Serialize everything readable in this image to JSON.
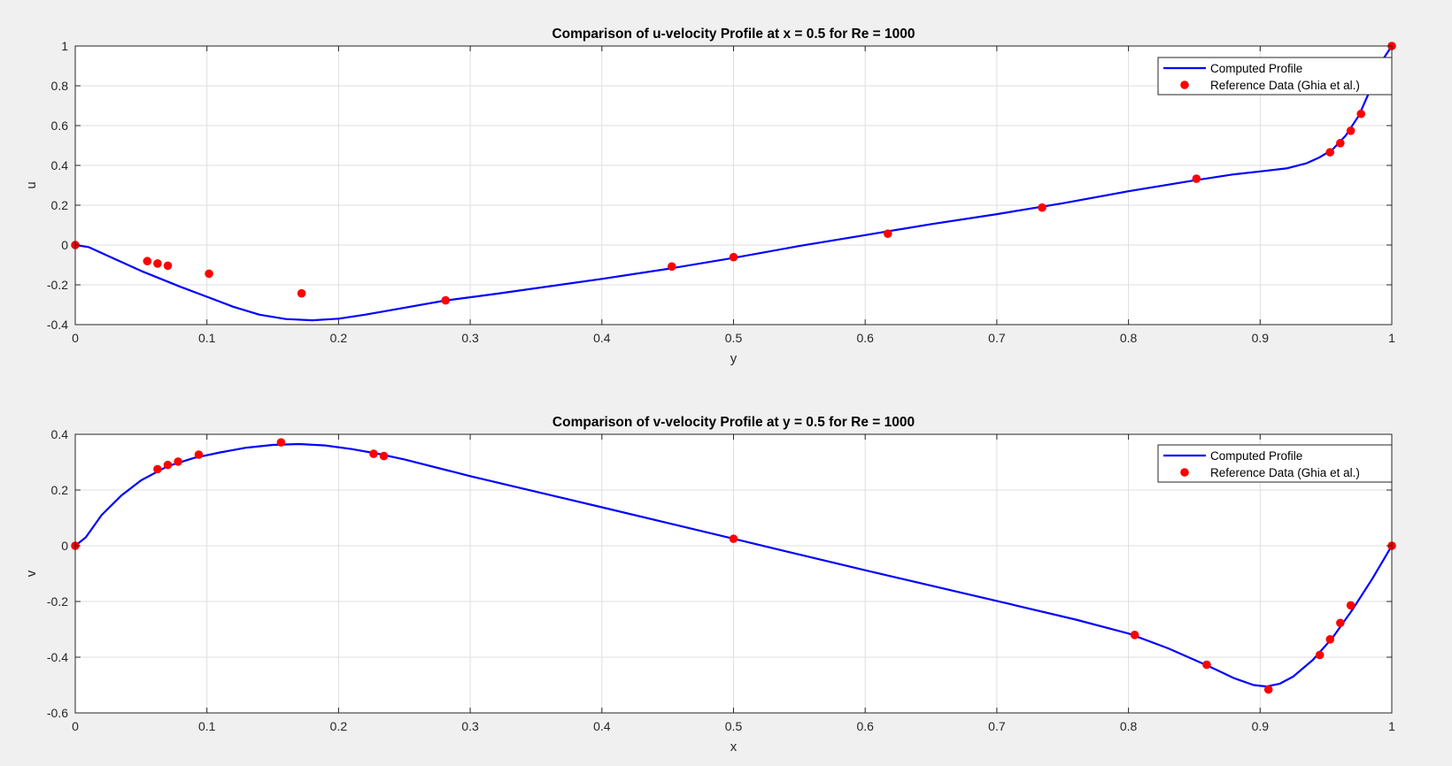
{
  "figure": {
    "background": "#f0f0f0",
    "toolbar": [
      {
        "name": "brush-icon",
        "title": "Brush"
      },
      {
        "name": "data-tips-icon",
        "title": "Data Tips"
      },
      {
        "name": "export-icon",
        "title": "Export"
      },
      {
        "name": "pan-icon",
        "title": "Pan"
      },
      {
        "name": "zoom-in-icon",
        "title": "Zoom In"
      },
      {
        "name": "zoom-out-icon",
        "title": "Zoom Out"
      },
      {
        "name": "home-icon",
        "title": "Restore View"
      }
    ]
  },
  "colors": {
    "line": "#0000ff",
    "marker": "#ff0000",
    "grid": "#dfdfdf",
    "axis": "#262626"
  },
  "chart_data": [
    {
      "type": "line",
      "title": "Comparison of u-velocity Profile at x = 0.5 for Re = 1000",
      "xlabel": "y",
      "ylabel": "u",
      "xlim": [
        0,
        1
      ],
      "ylim": [
        -0.4,
        1
      ],
      "xticks": [
        0,
        0.1,
        0.2,
        0.3,
        0.4,
        0.5,
        0.6,
        0.7,
        0.8,
        0.9,
        1
      ],
      "xtick_labels": [
        "0",
        "0.1",
        "0.2",
        "0.3",
        "0.4",
        "0.5",
        "0.6",
        "0.7",
        "0.8",
        "0.9",
        "1"
      ],
      "yticks": [
        -0.4,
        -0.2,
        0,
        0.2,
        0.4,
        0.6,
        0.8,
        1
      ],
      "ytick_labels": [
        "-0.4",
        "-0.2",
        "0",
        "0.2",
        "0.4",
        "0.6",
        "0.8",
        "1"
      ],
      "grid": true,
      "legend_position": "top-right",
      "series": [
        {
          "name": "Computed Profile",
          "kind": "line",
          "color": "#0000ff",
          "x": [
            0,
            0.01,
            0.03,
            0.05,
            0.08,
            0.1,
            0.12,
            0.14,
            0.16,
            0.18,
            0.2,
            0.22,
            0.25,
            0.28,
            0.32,
            0.4,
            0.45,
            0.5,
            0.55,
            0.6,
            0.65,
            0.7,
            0.75,
            0.8,
            0.85,
            0.88,
            0.9,
            0.92,
            0.935,
            0.945,
            0.955,
            0.965,
            0.975,
            0.985,
            0.992,
            1.0
          ],
          "y": [
            0,
            -0.01,
            -0.07,
            -0.13,
            -0.21,
            -0.26,
            -0.31,
            -0.35,
            -0.372,
            -0.378,
            -0.37,
            -0.35,
            -0.315,
            -0.28,
            -0.245,
            -0.17,
            -0.12,
            -0.065,
            -0.005,
            0.05,
            0.105,
            0.155,
            0.21,
            0.27,
            0.325,
            0.355,
            0.37,
            0.385,
            0.41,
            0.44,
            0.48,
            0.55,
            0.65,
            0.8,
            0.92,
            1.0
          ]
        },
        {
          "name": "Reference Data (Ghia et al.)",
          "kind": "scatter",
          "color": "#ff0000",
          "x": [
            0,
            0.0547,
            0.0625,
            0.0703,
            0.1016,
            0.1719,
            0.2813,
            0.4531,
            0.5,
            0.6172,
            0.7344,
            0.8516,
            0.9531,
            0.9609,
            0.9688,
            0.9766,
            1.0
          ],
          "y": [
            0,
            -0.081,
            -0.093,
            -0.104,
            -0.144,
            -0.243,
            -0.278,
            -0.108,
            -0.061,
            0.057,
            0.188,
            0.333,
            0.466,
            0.512,
            0.574,
            0.659,
            1.0
          ]
        }
      ]
    },
    {
      "type": "line",
      "title": "Comparison of v-velocity Profile at y = 0.5 for Re = 1000",
      "xlabel": "x",
      "ylabel": "v",
      "xlim": [
        0,
        1
      ],
      "ylim": [
        -0.6,
        0.4
      ],
      "xticks": [
        0,
        0.1,
        0.2,
        0.3,
        0.4,
        0.5,
        0.6,
        0.7,
        0.8,
        0.9,
        1
      ],
      "xtick_labels": [
        "0",
        "0.1",
        "0.2",
        "0.3",
        "0.4",
        "0.5",
        "0.6",
        "0.7",
        "0.8",
        "0.9",
        "1"
      ],
      "yticks": [
        -0.6,
        -0.4,
        -0.2,
        0,
        0.2,
        0.4
      ],
      "ytick_labels": [
        "-0.6",
        "-0.4",
        "-0.2",
        "0",
        "0.2",
        "0.4"
      ],
      "grid": true,
      "legend_position": "top-right",
      "series": [
        {
          "name": "Computed Profile",
          "kind": "line",
          "color": "#0000ff",
          "x": [
            0,
            0.008,
            0.02,
            0.035,
            0.05,
            0.07,
            0.09,
            0.11,
            0.13,
            0.15,
            0.17,
            0.19,
            0.21,
            0.23,
            0.25,
            0.3,
            0.4,
            0.5,
            0.6,
            0.7,
            0.76,
            0.8,
            0.83,
            0.86,
            0.88,
            0.895,
            0.905,
            0.915,
            0.925,
            0.94,
            0.955,
            0.97,
            0.985,
            0.995,
            1.0
          ],
          "y": [
            0,
            0.03,
            0.11,
            0.18,
            0.235,
            0.285,
            0.315,
            0.335,
            0.352,
            0.362,
            0.365,
            0.36,
            0.347,
            0.33,
            0.31,
            0.25,
            0.138,
            0.025,
            -0.088,
            -0.198,
            -0.265,
            -0.315,
            -0.368,
            -0.43,
            -0.475,
            -0.5,
            -0.505,
            -0.495,
            -0.47,
            -0.41,
            -0.33,
            -0.23,
            -0.12,
            -0.04,
            0
          ]
        },
        {
          "name": "Reference Data (Ghia et al.)",
          "kind": "scatter",
          "color": "#ff0000",
          "x": [
            0,
            0.0625,
            0.0703,
            0.0781,
            0.0938,
            0.1563,
            0.2266,
            0.2344,
            0.5,
            0.8047,
            0.8594,
            0.9063,
            0.9453,
            0.9531,
            0.9609,
            0.9688,
            1.0
          ],
          "y": [
            0,
            0.275,
            0.29,
            0.302,
            0.327,
            0.371,
            0.33,
            0.322,
            0.025,
            -0.32,
            -0.427,
            -0.516,
            -0.392,
            -0.336,
            -0.277,
            -0.214,
            0
          ]
        }
      ]
    }
  ]
}
